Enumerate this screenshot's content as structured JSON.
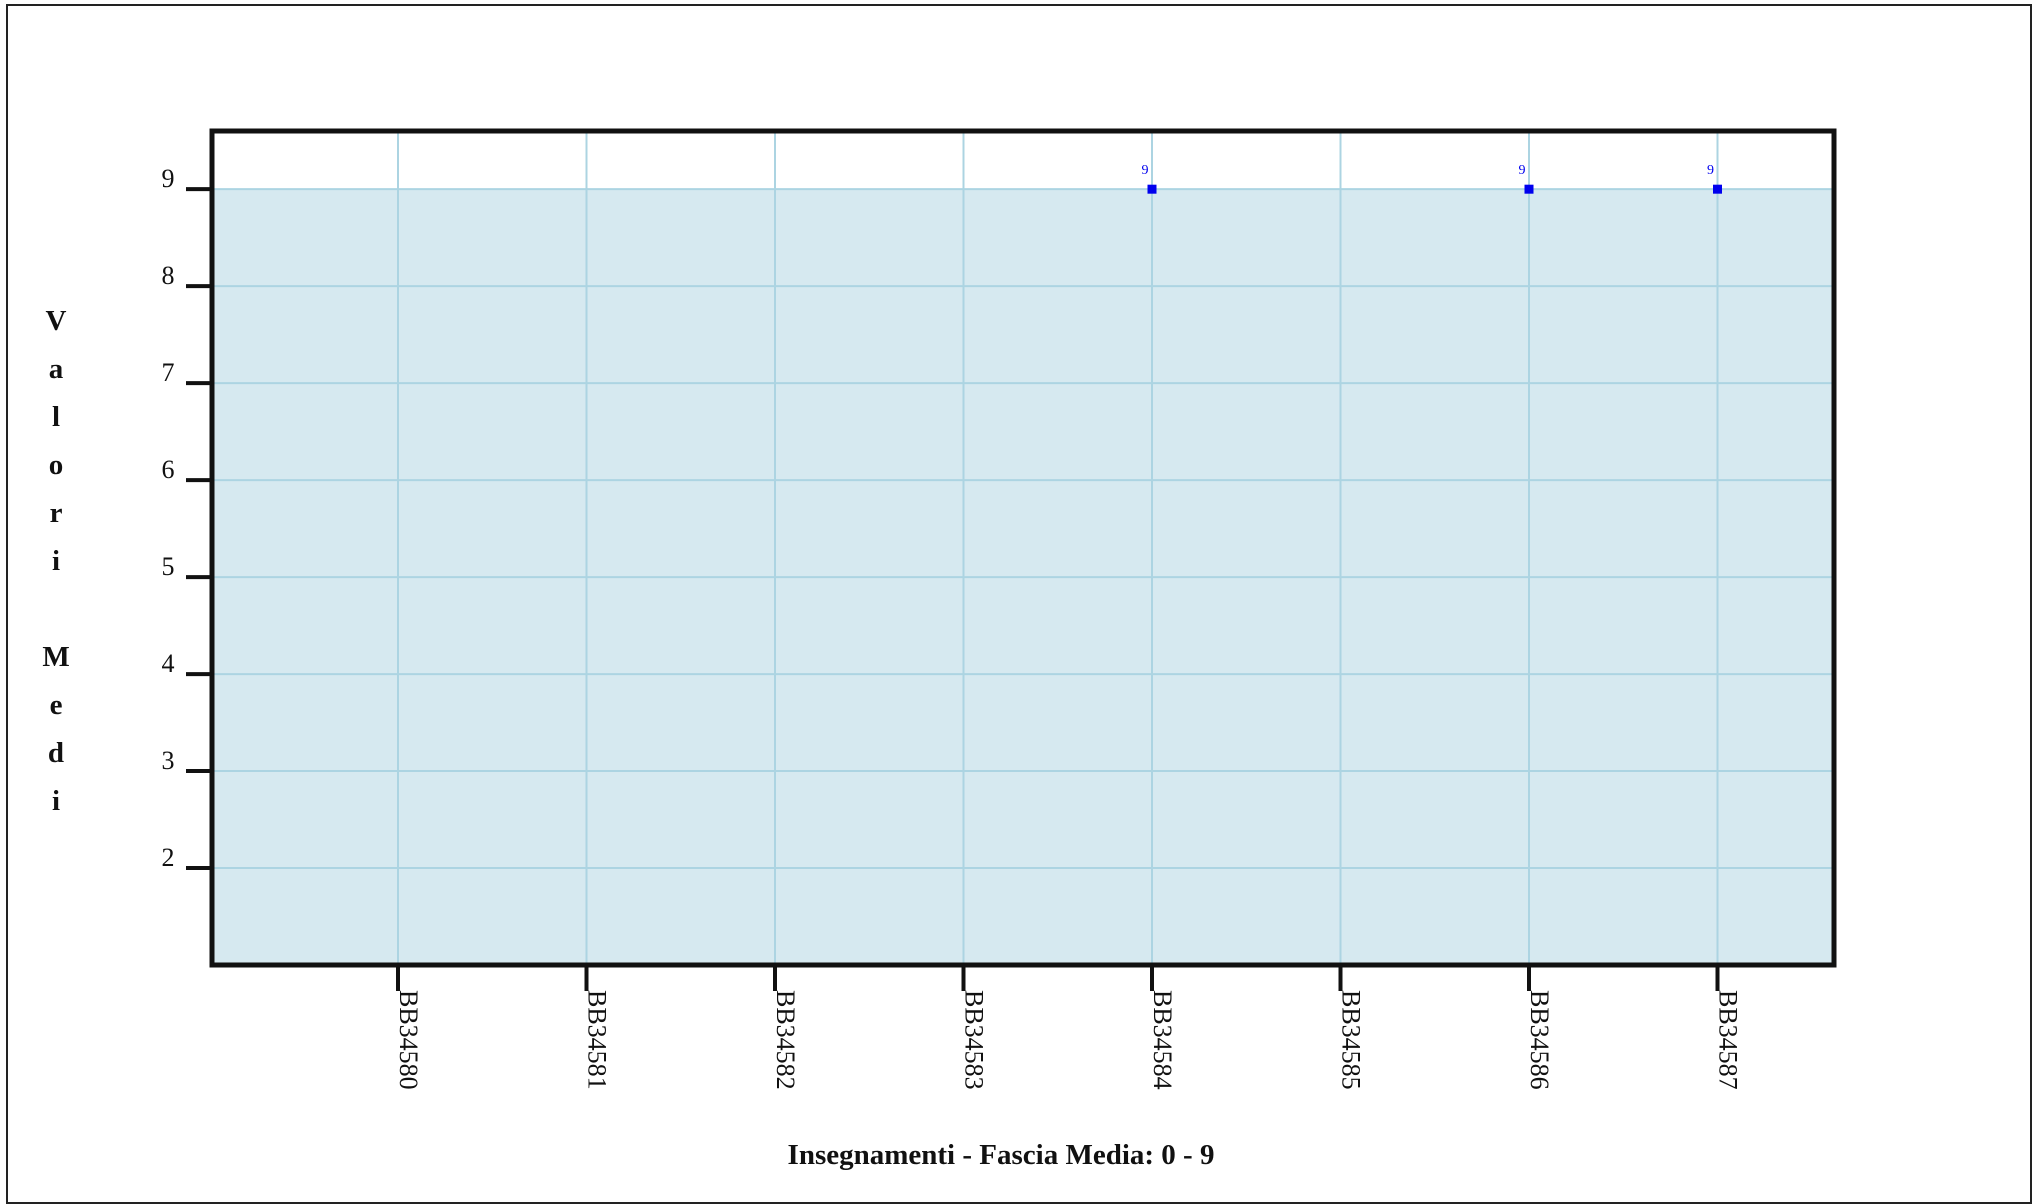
{
  "chart_data": {
    "type": "area",
    "title": "",
    "xlabel": "Insegnamenti - Fascia Media: 0 - 9",
    "ylabel": "Valori Medi",
    "categories": [
      "BB34580",
      "BB34581",
      "BB34582",
      "BB34583",
      "BB34584",
      "BB34585",
      "BB34586",
      "BB34587"
    ],
    "band": {
      "from": 0,
      "to": 9
    },
    "points": [
      {
        "x": "BB34584",
        "y": 9,
        "label": "9"
      },
      {
        "x": "BB34586",
        "y": 9,
        "label": "9"
      },
      {
        "x": "BB34587",
        "y": 9,
        "label": "9"
      }
    ],
    "yticks": [
      2,
      3,
      4,
      5,
      6,
      7,
      8,
      9
    ],
    "ylim": [
      1,
      9.6
    ],
    "grid": true,
    "legend": "none"
  },
  "colors": {
    "band_fill": "#d6e9f0",
    "grid": "#acd4e2",
    "axis": "#111111",
    "marker": "#0000ee"
  }
}
